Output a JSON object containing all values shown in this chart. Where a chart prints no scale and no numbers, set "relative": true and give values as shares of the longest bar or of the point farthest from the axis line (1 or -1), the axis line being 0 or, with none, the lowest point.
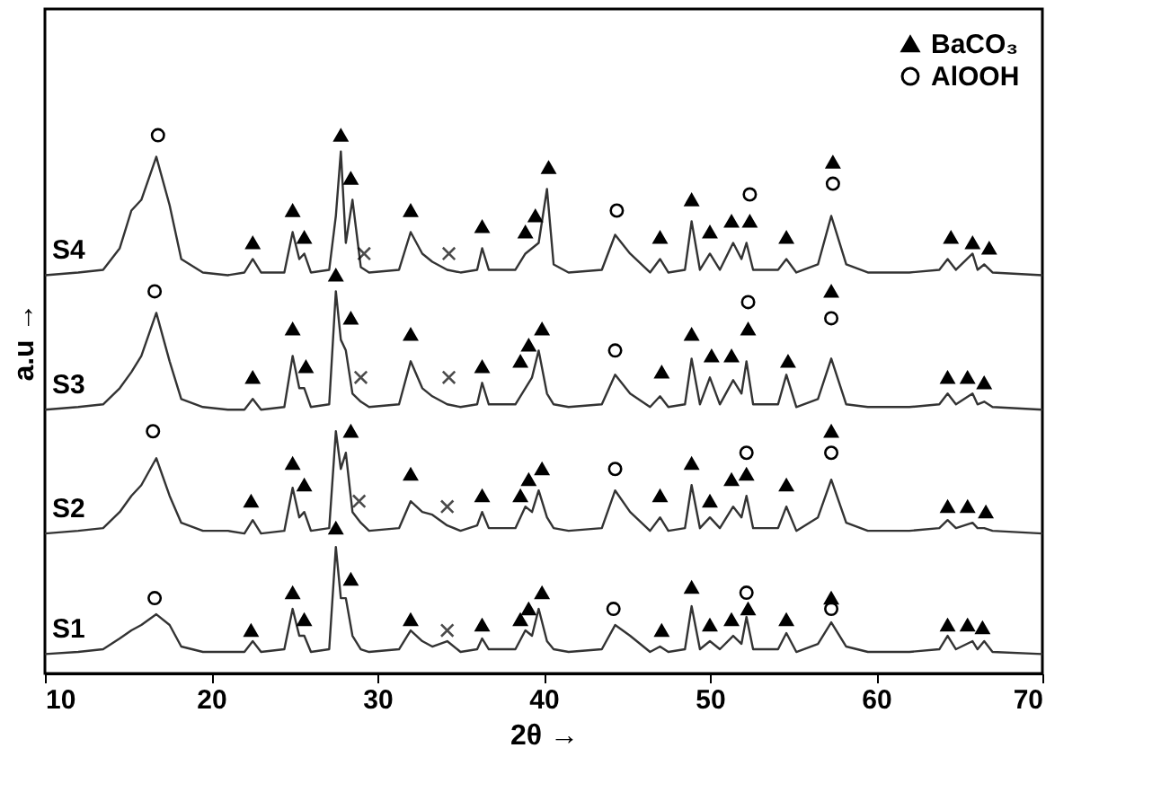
{
  "chart_data": {
    "type": "line",
    "relative": true,
    "xlabel": "2θ →",
    "ylabel": "a.u →",
    "xlim": [
      10,
      70
    ],
    "xticks": [
      10,
      20,
      30,
      40,
      50,
      60,
      70
    ],
    "grid": false,
    "legend": "top right",
    "line_style": "solid",
    "marker": "none",
    "x": [
      10,
      12,
      13.5,
      14.5,
      15.2,
      15.8,
      16.7,
      17.5,
      18.2,
      19.5,
      21,
      22,
      22.5,
      23,
      24.4,
      24.9,
      25.3,
      25.6,
      26,
      27.1,
      27.5,
      27.8,
      28.1,
      28.5,
      29,
      29.5,
      31.3,
      32,
      32.7,
      33.3,
      34.2,
      35,
      36,
      36.3,
      36.7,
      38.3,
      38.9,
      39.3,
      39.7,
      40.2,
      40.6,
      41.5,
      43.5,
      44.3,
      45.2,
      46.4,
      47,
      47.5,
      48.5,
      48.9,
      49.4,
      50,
      50.6,
      51.4,
      51.9,
      52.2,
      52.6,
      54.1,
      54.6,
      55.2,
      56.5,
      57.3,
      58.2,
      59.5,
      62,
      63.8,
      64.3,
      64.8,
      65.8,
      66.1,
      66.5,
      67,
      70
    ],
    "series": [
      {
        "name": "S4",
        "color": "#333333",
        "values": [
          0.74,
          0.745,
          0.75,
          0.79,
          0.86,
          0.88,
          0.96,
          0.87,
          0.77,
          0.745,
          0.74,
          0.745,
          0.77,
          0.745,
          0.745,
          0.82,
          0.77,
          0.78,
          0.745,
          0.75,
          0.85,
          0.97,
          0.8,
          0.88,
          0.755,
          0.745,
          0.75,
          0.82,
          0.78,
          0.765,
          0.75,
          0.745,
          0.75,
          0.79,
          0.75,
          0.75,
          0.78,
          0.79,
          0.8,
          0.9,
          0.76,
          0.745,
          0.75,
          0.815,
          0.78,
          0.745,
          0.77,
          0.745,
          0.75,
          0.84,
          0.75,
          0.78,
          0.75,
          0.8,
          0.77,
          0.8,
          0.75,
          0.75,
          0.77,
          0.745,
          0.76,
          0.85,
          0.76,
          0.745,
          0.745,
          0.75,
          0.77,
          0.75,
          0.78,
          0.75,
          0.76,
          0.745,
          0.74
        ]
      },
      {
        "name": "S3",
        "color": "#333333",
        "values": [
          0.49,
          0.495,
          0.5,
          0.53,
          0.56,
          0.59,
          0.67,
          0.58,
          0.51,
          0.495,
          0.49,
          0.49,
          0.51,
          0.49,
          0.495,
          0.59,
          0.53,
          0.53,
          0.495,
          0.5,
          0.71,
          0.62,
          0.6,
          0.52,
          0.505,
          0.495,
          0.5,
          0.58,
          0.53,
          0.515,
          0.5,
          0.495,
          0.5,
          0.54,
          0.5,
          0.5,
          0.53,
          0.55,
          0.6,
          0.52,
          0.5,
          0.495,
          0.5,
          0.555,
          0.52,
          0.495,
          0.515,
          0.495,
          0.5,
          0.585,
          0.5,
          0.55,
          0.5,
          0.545,
          0.52,
          0.58,
          0.5,
          0.5,
          0.555,
          0.495,
          0.51,
          0.585,
          0.5,
          0.495,
          0.495,
          0.5,
          0.52,
          0.5,
          0.52,
          0.5,
          0.505,
          0.495,
          0.49
        ]
      },
      {
        "name": "S2",
        "color": "#333333",
        "values": [
          0.26,
          0.265,
          0.27,
          0.3,
          0.33,
          0.35,
          0.4,
          0.33,
          0.28,
          0.265,
          0.265,
          0.26,
          0.285,
          0.26,
          0.265,
          0.345,
          0.29,
          0.3,
          0.265,
          0.27,
          0.45,
          0.38,
          0.41,
          0.3,
          0.28,
          0.265,
          0.27,
          0.32,
          0.3,
          0.295,
          0.275,
          0.265,
          0.275,
          0.3,
          0.27,
          0.27,
          0.31,
          0.3,
          0.34,
          0.29,
          0.27,
          0.265,
          0.27,
          0.34,
          0.3,
          0.265,
          0.29,
          0.265,
          0.27,
          0.35,
          0.27,
          0.29,
          0.27,
          0.31,
          0.29,
          0.33,
          0.27,
          0.27,
          0.31,
          0.265,
          0.29,
          0.36,
          0.28,
          0.265,
          0.265,
          0.27,
          0.285,
          0.27,
          0.28,
          0.27,
          0.27,
          0.265,
          0.26
        ]
      },
      {
        "name": "S1",
        "color": "#333333",
        "values": [
          0.036,
          0.04,
          0.045,
          0.065,
          0.08,
          0.09,
          0.11,
          0.09,
          0.05,
          0.04,
          0.04,
          0.04,
          0.06,
          0.04,
          0.045,
          0.12,
          0.07,
          0.07,
          0.04,
          0.045,
          0.235,
          0.14,
          0.14,
          0.07,
          0.045,
          0.04,
          0.045,
          0.08,
          0.06,
          0.05,
          0.06,
          0.04,
          0.045,
          0.065,
          0.045,
          0.045,
          0.08,
          0.07,
          0.12,
          0.06,
          0.045,
          0.04,
          0.045,
          0.09,
          0.07,
          0.04,
          0.05,
          0.04,
          0.045,
          0.125,
          0.045,
          0.06,
          0.045,
          0.07,
          0.055,
          0.105,
          0.045,
          0.045,
          0.075,
          0.04,
          0.055,
          0.095,
          0.05,
          0.04,
          0.04,
          0.045,
          0.07,
          0.045,
          0.06,
          0.045,
          0.06,
          0.04,
          0.036
        ]
      },
      {
        "name": "BaCO₃",
        "type": "scatter",
        "marker": "triangle",
        "color": "#000000",
        "x": [
          22.5,
          24.9,
          25.6,
          27.8,
          28.4,
          32,
          36.3,
          38.9,
          39.5,
          40.3,
          47,
          48.9,
          50,
          51.3,
          52.4,
          54.6,
          57.4,
          64.5,
          65.8,
          66.8,
          22.5,
          24.9,
          25.7,
          27.5,
          28.4,
          32,
          36.3,
          38.6,
          39.1,
          39.9,
          47.1,
          48.9,
          50.1,
          51.3,
          52.3,
          54.7,
          57.3,
          64.3,
          65.5,
          66.5,
          22.4,
          24.9,
          25.6,
          28.4,
          32,
          36.3,
          38.6,
          39.1,
          39.9,
          47,
          48.9,
          50,
          51.3,
          52.2,
          54.6,
          57.3,
          64.3,
          65.5,
          66.6,
          22.4,
          24.9,
          25.6,
          27.5,
          28.4,
          32,
          36.3,
          38.6,
          39.1,
          39.9,
          47.1,
          48.9,
          50,
          51.3,
          52.3,
          54.6,
          57.3,
          64.3,
          65.5,
          66.4
        ],
        "values": [
          0.8,
          0.86,
          0.81,
          1.0,
          0.92,
          0.86,
          0.83,
          0.82,
          0.85,
          0.94,
          0.81,
          0.88,
          0.82,
          0.84,
          0.84,
          0.81,
          0.95,
          0.81,
          0.8,
          0.79,
          0.55,
          0.64,
          0.57,
          0.74,
          0.66,
          0.63,
          0.57,
          0.58,
          0.61,
          0.64,
          0.56,
          0.63,
          0.59,
          0.59,
          0.64,
          0.58,
          0.71,
          0.55,
          0.55,
          0.54,
          0.32,
          0.39,
          0.35,
          0.45,
          0.37,
          0.33,
          0.33,
          0.36,
          0.38,
          0.33,
          0.39,
          0.32,
          0.36,
          0.37,
          0.35,
          0.45,
          0.31,
          0.31,
          0.3,
          0.08,
          0.15,
          0.1,
          0.27,
          0.175,
          0.1,
          0.09,
          0.1,
          0.12,
          0.15,
          0.08,
          0.16,
          0.09,
          0.1,
          0.12,
          0.1,
          0.14,
          0.09,
          0.09,
          0.085
        ]
      },
      {
        "name": "AlOOH",
        "type": "scatter",
        "marker": "circle",
        "color": "#000000",
        "x": [
          16.8,
          44.4,
          52.4,
          57.4,
          16.6,
          44.3,
          52.3,
          57.3,
          16.5,
          44.3,
          52.2,
          57.3,
          16.6,
          44.2,
          52.2,
          57.3
        ],
        "values": [
          1.0,
          0.86,
          0.89,
          0.91,
          0.71,
          0.6,
          0.69,
          0.66,
          0.45,
          0.38,
          0.41,
          0.41,
          0.14,
          0.12,
          0.15,
          0.12
        ]
      },
      {
        "type": "scatter",
        "marker": "cross",
        "color": "#000000",
        "x": [
          29.2,
          34.3,
          29,
          34.3,
          28.9,
          34.2,
          34.2
        ],
        "values": [
          0.78,
          0.78,
          0.55,
          0.55,
          0.32,
          0.31,
          0.08
        ]
      }
    ]
  }
}
